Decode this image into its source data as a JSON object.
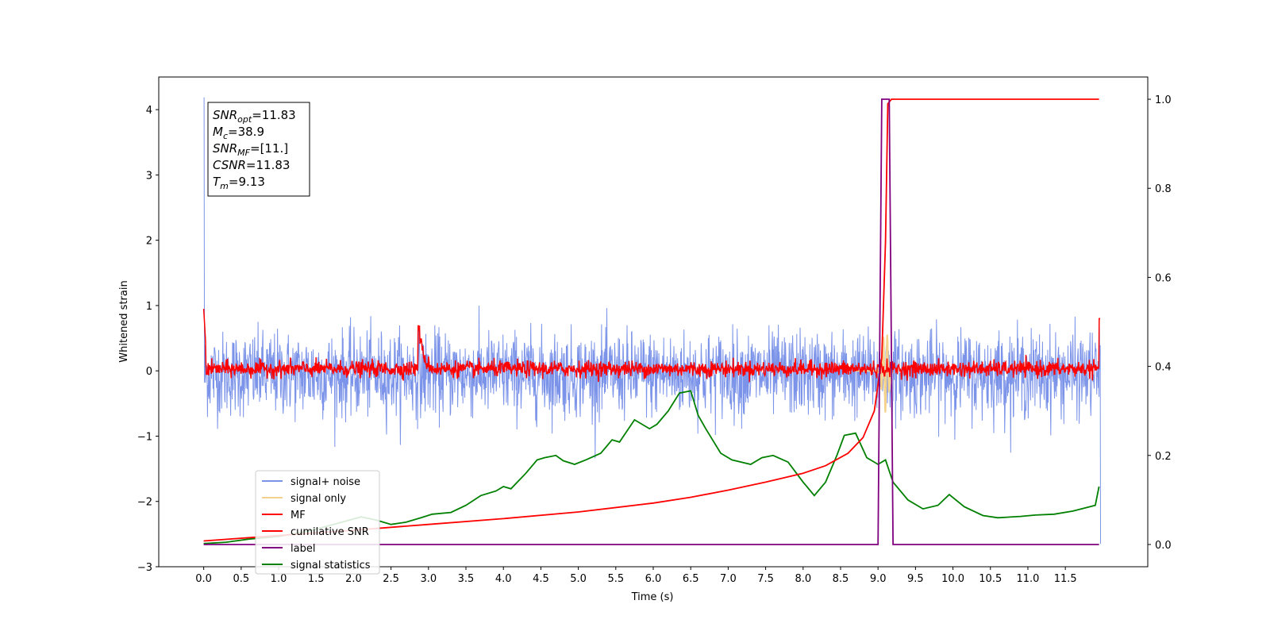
{
  "chart_data": {
    "type": "line",
    "xlabel": "Time (s)",
    "ylabel": "Whitened strain",
    "xlim": [
      -0.6,
      12.6
    ],
    "ylim": [
      -3.0,
      4.5
    ],
    "y2lim": [
      -0.05,
      1.05
    ],
    "x_ticks": [
      "0.0",
      "0.5",
      "1.0",
      "1.5",
      "2.0",
      "2.5",
      "3.0",
      "3.5",
      "4.0",
      "4.5",
      "5.0",
      "5.5",
      "6.0",
      "6.5",
      "7.0",
      "7.5",
      "8.0",
      "8.5",
      "9.0",
      "9.5",
      "10.0",
      "10.5",
      "11.0",
      "11.5"
    ],
    "y_ticks": [
      "4",
      "3",
      "2",
      "1",
      "0",
      "−1",
      "−2",
      "−3"
    ],
    "y2_ticks": [
      "1.0",
      "0.8",
      "0.6",
      "0.4",
      "0.2",
      "0.0"
    ],
    "legend_position": "lower-left",
    "legend": [
      {
        "label": "signal+ noise",
        "color": "#7b93e8"
      },
      {
        "label": "signal only",
        "color": "#f5d28c"
      },
      {
        "label": "MF",
        "color": "#ff0000"
      },
      {
        "label": "cumilative SNR",
        "color": "#ff0000"
      },
      {
        "label": "label",
        "color": "#800080"
      },
      {
        "label": "signal statistics",
        "color": "#008000"
      }
    ],
    "annotation": [
      {
        "base": "SNR",
        "sub": "opt",
        "value": "=11.83"
      },
      {
        "base": "M",
        "sub": "c",
        "value": "=38.9"
      },
      {
        "base": "SNR",
        "sub": "MF",
        "value": "=[11.]"
      },
      {
        "base": "CSNR",
        "sub": "",
        "value": "=11.83"
      },
      {
        "base": "T",
        "sub": "m",
        "value": "=9.13"
      }
    ],
    "series": [
      {
        "name": "signal statistics",
        "axis": "right",
        "color": "#008000",
        "x": [
          0.0,
          0.3,
          0.6,
          1.0,
          1.4,
          1.8,
          2.1,
          2.3,
          2.5,
          2.7,
          2.9,
          3.05,
          3.3,
          3.5,
          3.7,
          3.9,
          4.0,
          4.1,
          4.3,
          4.45,
          4.55,
          4.7,
          4.8,
          4.95,
          5.1,
          5.3,
          5.45,
          5.55,
          5.75,
          5.95,
          6.05,
          6.2,
          6.35,
          6.5,
          6.6,
          6.7,
          6.9,
          7.05,
          7.3,
          7.45,
          7.6,
          7.8,
          8.0,
          8.15,
          8.3,
          8.45,
          8.55,
          8.7,
          8.85,
          9.0,
          9.1,
          9.2,
          9.4,
          9.6,
          9.8,
          9.95,
          10.15,
          10.4,
          10.6,
          10.9,
          11.1,
          11.35,
          11.6,
          11.9,
          11.95
        ],
        "y": [
          0.002,
          0.005,
          0.012,
          0.018,
          0.03,
          0.048,
          0.062,
          0.055,
          0.045,
          0.05,
          0.06,
          0.068,
          0.072,
          0.088,
          0.11,
          0.12,
          0.13,
          0.125,
          0.16,
          0.19,
          0.195,
          0.2,
          0.188,
          0.18,
          0.19,
          0.205,
          0.235,
          0.23,
          0.28,
          0.26,
          0.27,
          0.3,
          0.34,
          0.345,
          0.29,
          0.26,
          0.205,
          0.19,
          0.18,
          0.195,
          0.2,
          0.185,
          0.14,
          0.11,
          0.14,
          0.2,
          0.245,
          0.25,
          0.195,
          0.18,
          0.19,
          0.14,
          0.1,
          0.08,
          0.088,
          0.112,
          0.085,
          0.065,
          0.06,
          0.063,
          0.066,
          0.068,
          0.075,
          0.088,
          0.13
        ]
      },
      {
        "name": "cumilative SNR",
        "axis": "right",
        "color": "#ff0000",
        "x": [
          0.0,
          1.0,
          2.0,
          3.0,
          4.0,
          5.0,
          6.0,
          6.5,
          7.0,
          7.5,
          8.0,
          8.3,
          8.6,
          8.8,
          8.95,
          9.05,
          9.1,
          9.13,
          9.18,
          11.95
        ],
        "y": [
          0.008,
          0.02,
          0.032,
          0.045,
          0.058,
          0.073,
          0.093,
          0.106,
          0.122,
          0.14,
          0.16,
          0.177,
          0.205,
          0.24,
          0.3,
          0.42,
          0.68,
          0.99,
          1.0,
          1.0
        ]
      },
      {
        "name": "label",
        "axis": "right",
        "color": "#800080",
        "x": [
          0.0,
          9.0,
          9.05,
          9.15,
          9.2,
          11.95
        ],
        "y": [
          0.0,
          0.0,
          1.0,
          1.0,
          0.0,
          0.0
        ]
      }
    ]
  }
}
